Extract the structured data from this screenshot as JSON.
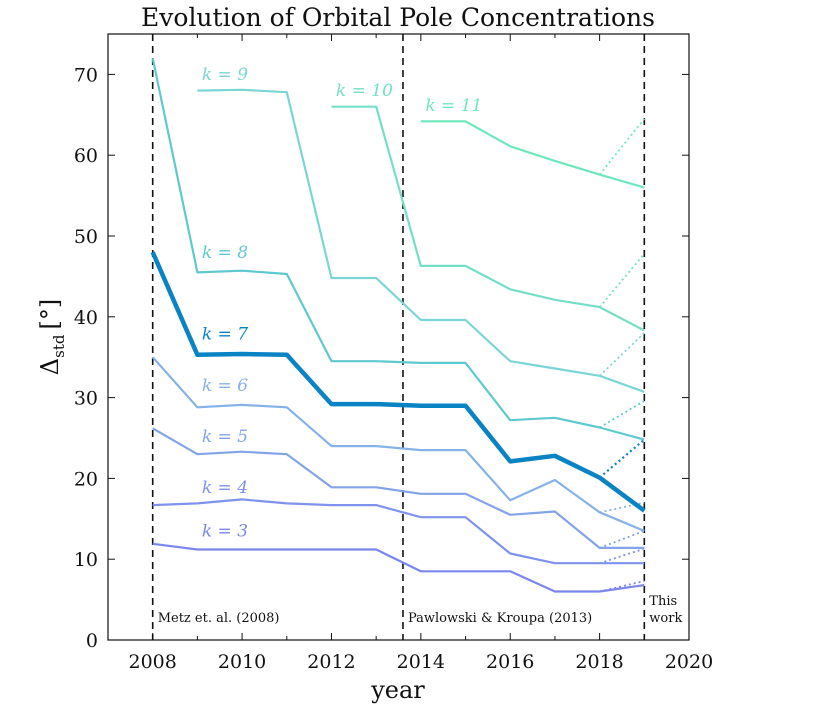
{
  "chart_data": {
    "type": "line",
    "title": "Evolution of Orbital Pole Concentrations",
    "xlabel": "year",
    "ylabel": "Δstd [°]",
    "ylabel_main": "Δ",
    "ylabel_sub": "std",
    "ylabel_unit": "[°]",
    "xlim": [
      2007,
      2020
    ],
    "ylim": [
      0,
      75
    ],
    "xticks": [
      2008,
      2010,
      2012,
      2014,
      2016,
      2018,
      2020
    ],
    "yticks": [
      0,
      10,
      20,
      30,
      40,
      50,
      60,
      70
    ],
    "grid": false,
    "vlines": [
      {
        "x": 2008,
        "label_lines": [
          "Metz et. al. (2008)"
        ]
      },
      {
        "x": 2013.6,
        "label_lines": [
          "Pawlowski & Kroupa (2013)"
        ]
      },
      {
        "x": 2019,
        "label_lines": [
          "This",
          "work"
        ]
      }
    ],
    "series": [
      {
        "name": "k = 3",
        "k": "3",
        "color": "#7b86ef",
        "label_year": 2009.1,
        "label_value": 12.8,
        "x": [
          2008,
          2009,
          2010,
          2011,
          2012,
          2013,
          2014,
          2015,
          2016,
          2017,
          2018,
          2019
        ],
        "y": [
          11.9,
          11.2,
          11.2,
          11.2,
          11.2,
          11.2,
          8.5,
          8.5,
          8.5,
          6.0,
          6.0,
          6.8
        ],
        "dotted": [
          [
            2018,
            6.0,
            2019,
            7.3
          ]
        ]
      },
      {
        "name": "k = 4",
        "k": "4",
        "color": "#7f93ee",
        "label_year": 2009.1,
        "label_value": 18.2,
        "x": [
          2008,
          2009,
          2010,
          2011,
          2012,
          2013,
          2014,
          2015,
          2016,
          2017,
          2018,
          2019
        ],
        "y": [
          16.7,
          16.9,
          17.4,
          16.9,
          16.7,
          16.7,
          15.2,
          15.2,
          10.7,
          9.5,
          9.5,
          9.5
        ],
        "dotted": [
          [
            2018,
            9.5,
            2019,
            11.3
          ]
        ]
      },
      {
        "name": "k = 5",
        "k": "5",
        "color": "#83a4e8",
        "label_year": 2009.1,
        "label_value": 24.5,
        "x": [
          2008,
          2009,
          2010,
          2011,
          2012,
          2013,
          2014,
          2015,
          2016,
          2017,
          2018,
          2019
        ],
        "y": [
          26.2,
          23.0,
          23.3,
          23.0,
          18.9,
          18.9,
          18.1,
          18.1,
          15.5,
          15.9,
          11.4,
          11.4
        ],
        "dotted": [
          [
            2018,
            11.4,
            2019,
            13.5
          ]
        ]
      },
      {
        "name": "k = 6",
        "k": "6",
        "color": "#86b2e8",
        "label_year": 2009.1,
        "label_value": 30.8,
        "x": [
          2008,
          2009,
          2010,
          2011,
          2012,
          2013,
          2014,
          2015,
          2016,
          2017,
          2018,
          2019
        ],
        "y": [
          35.0,
          28.8,
          29.1,
          28.8,
          24.0,
          24.0,
          23.5,
          23.5,
          17.3,
          19.8,
          15.8,
          13.5
        ],
        "dotted": [
          [
            2018,
            15.8,
            2019,
            17.0
          ]
        ]
      },
      {
        "name": "k = 7",
        "k": "7",
        "color": "#0a83c4",
        "label_year": 2009.1,
        "label_value": 37.2,
        "bold": true,
        "x": [
          2008,
          2009,
          2010,
          2011,
          2012,
          2013,
          2014,
          2015,
          2016,
          2017,
          2018,
          2019
        ],
        "y": [
          48.0,
          35.3,
          35.4,
          35.3,
          29.2,
          29.2,
          29.0,
          29.0,
          22.1,
          22.8,
          20.1,
          16.0
        ],
        "dotted": [
          [
            2018,
            20.1,
            2019,
            24.8
          ]
        ]
      },
      {
        "name": "k = 8",
        "k": "8",
        "color": "#5ec9cf",
        "label_year": 2009.1,
        "label_value": 47.3,
        "x": [
          2008,
          2009,
          2010,
          2011,
          2012,
          2013,
          2014,
          2015,
          2016,
          2017,
          2018,
          2019
        ],
        "y": [
          72.0,
          45.5,
          45.7,
          45.3,
          34.5,
          34.5,
          34.3,
          34.3,
          27.2,
          27.5,
          26.3,
          24.8
        ],
        "dotted": [
          [
            2018,
            26.3,
            2019,
            29.6
          ]
        ]
      },
      {
        "name": "k = 9",
        "k": "9",
        "color": "#7ad6d4",
        "label_year": 2009.1,
        "label_value": 69.3,
        "x": [
          2009,
          2010,
          2011,
          2012,
          2013,
          2014,
          2015,
          2016,
          2017,
          2018,
          2019
        ],
        "y": [
          68.0,
          68.1,
          67.8,
          44.8,
          44.8,
          39.6,
          39.6,
          34.5,
          33.6,
          32.7,
          30.7
        ],
        "dotted": [
          [
            2018,
            32.7,
            2019,
            38.0
          ]
        ]
      },
      {
        "name": "k = 10",
        "k": "10",
        "color": "#74dfc6",
        "label_year": 2012.1,
        "label_value": 67.3,
        "x": [
          2012,
          2013,
          2014,
          2015,
          2016,
          2017,
          2018,
          2019
        ],
        "y": [
          66.0,
          66.0,
          46.3,
          46.3,
          43.4,
          42.1,
          41.2,
          38.3
        ],
        "dotted": [
          [
            2018,
            41.2,
            2019,
            47.8
          ]
        ]
      },
      {
        "name": "k = 11",
        "k": "11",
        "color": "#6ee8bb",
        "label_year": 2014.1,
        "label_value": 65.5,
        "x": [
          2014,
          2015,
          2016,
          2017,
          2018,
          2019
        ],
        "y": [
          64.2,
          64.2,
          61.1,
          59.3,
          57.6,
          56.0
        ],
        "dotted": [
          [
            2018,
            57.6,
            2019,
            64.5
          ]
        ]
      }
    ]
  }
}
